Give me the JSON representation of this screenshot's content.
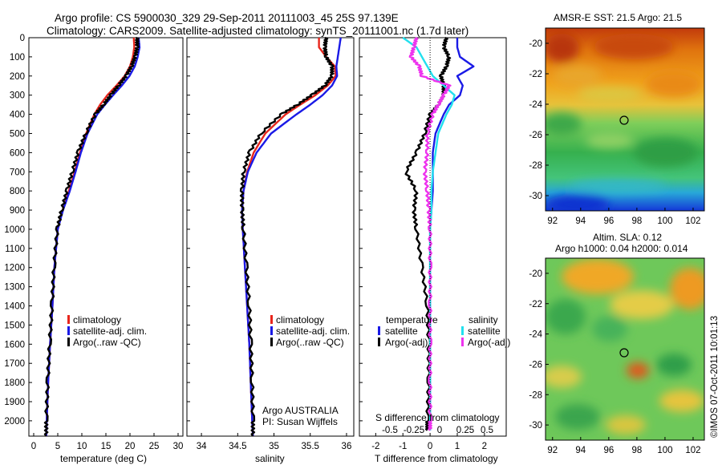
{
  "title": {
    "line1": "Argo profile: CS 5900030_329 29-Sep-2011 20111003_45 25S 97.139E",
    "line2": "Climatology: CARS2009. Satellite-adjusted climatology: synTS_20111001.nc (1.7d later)"
  },
  "colors": {
    "climatology": "#e8261c",
    "satellite": "#1a1ae6",
    "argo": "#000000",
    "salinity_satellite": "#22e0ee",
    "salinity_argo": "#ee33ee"
  },
  "chart_data": [
    {
      "type": "line",
      "panel": "temperature",
      "xlabel": "temperature (deg C)",
      "ylabel": "",
      "xlim": [
        -1,
        31
      ],
      "ylim": [
        2080,
        0
      ],
      "xticks": [
        "0",
        "5",
        "10",
        "15",
        "20",
        "25",
        "30"
      ],
      "yticks": [
        "0",
        "100",
        "200",
        "300",
        "400",
        "500",
        "600",
        "700",
        "800",
        "900",
        "1000",
        "1100",
        "1200",
        "1300",
        "1400",
        "1500",
        "1600",
        "1700",
        "1800",
        "1900",
        "2000"
      ],
      "legend": [
        "climatology",
        "satellite-adj. clim.",
        "Argo(..raw -QC)"
      ],
      "legend_position": "lower-right",
      "depth": [
        0,
        50,
        100,
        150,
        200,
        250,
        300,
        350,
        400,
        500,
        600,
        700,
        800,
        900,
        1000,
        1200,
        1400,
        1600,
        1800,
        2000,
        2080
      ],
      "series": [
        {
          "name": "climatology",
          "values": [
            20.8,
            20.9,
            20.6,
            20.0,
            18.9,
            17.2,
            15.3,
            13.8,
            12.6,
            10.9,
            9.6,
            8.5,
            7.3,
            6.0,
            5.0,
            4.3,
            3.9,
            3.4,
            3.0,
            2.7,
            2.6
          ]
        },
        {
          "name": "satellite-adj. clim.",
          "values": [
            21.8,
            22.0,
            21.6,
            21.0,
            19.9,
            18.3,
            16.5,
            14.8,
            13.2,
            11.2,
            9.8,
            8.7,
            7.5,
            6.1,
            5.0,
            4.3,
            3.9,
            3.4,
            3.0,
            2.7,
            2.6
          ]
        },
        {
          "name": "Argo(..raw -QC)",
          "values": [
            21.5,
            21.5,
            21.1,
            20.3,
            19.2,
            17.6,
            16.0,
            14.5,
            12.8,
            10.8,
            9.2,
            8.0,
            6.9,
            5.8,
            4.9,
            4.2,
            3.8,
            3.3,
            2.9,
            2.6,
            2.6
          ]
        }
      ]
    },
    {
      "type": "line",
      "panel": "salinity",
      "xlabel": "salinity",
      "ylabel": "",
      "xlim": [
        33.8,
        36.1
      ],
      "ylim": [
        2080,
        0
      ],
      "xticks": [
        "34",
        "34.5",
        "35",
        "35.5",
        "36"
      ],
      "legend": [
        "climatology",
        "satellite-adj. clim.",
        "Argo(..raw -QC)"
      ],
      "legend_position": "lower-right",
      "annotation": [
        "Argo AUSTRALIA",
        "PI: Susan Wijffels"
      ],
      "depth": [
        0,
        50,
        100,
        150,
        200,
        250,
        300,
        350,
        400,
        500,
        600,
        700,
        800,
        900,
        1000,
        1200,
        1400,
        1600,
        1800,
        2000,
        2080
      ],
      "series": [
        {
          "name": "climatology",
          "values": [
            35.62,
            35.62,
            35.72,
            35.84,
            35.85,
            35.74,
            35.57,
            35.36,
            35.16,
            34.88,
            34.72,
            34.63,
            34.58,
            34.56,
            34.57,
            34.6,
            34.63,
            34.66,
            34.68,
            34.7,
            34.71
          ]
        },
        {
          "name": "satellite-adj. clim.",
          "values": [
            35.92,
            35.9,
            35.88,
            35.86,
            35.87,
            35.8,
            35.67,
            35.5,
            35.31,
            34.96,
            34.76,
            34.64,
            34.58,
            34.56,
            34.57,
            34.6,
            34.63,
            34.66,
            34.68,
            34.7,
            34.71
          ]
        },
        {
          "name": "Argo(..raw -QC)",
          "values": [
            35.72,
            35.7,
            35.72,
            35.8,
            35.8,
            35.7,
            35.52,
            35.32,
            35.1,
            34.82,
            34.66,
            34.58,
            34.56,
            34.56,
            34.58,
            34.62,
            34.66,
            34.68,
            34.7,
            34.71,
            34.71
          ]
        }
      ]
    },
    {
      "type": "line",
      "panel": "difference",
      "xlabel": "T difference from climatology",
      "xlabel2": "S difference from climatology",
      "ylabel": "",
      "xlim": [
        -2.6,
        2.8
      ],
      "ylim": [
        2080,
        0
      ],
      "xticks": [
        "-2",
        "-1",
        "0",
        "1",
        "2"
      ],
      "xticks2": [
        "-0.5",
        "-0.25",
        "0",
        "0.25",
        "0.5"
      ],
      "legend_temperature_heading": "temperature",
      "legend_salinity_heading": "salinity",
      "legend": [
        "satellite",
        "Argo(-adj)",
        "satellite",
        "Argo(-adj)"
      ],
      "legend_position": "middle",
      "depth": [
        0,
        50,
        100,
        150,
        200,
        250,
        300,
        350,
        400,
        500,
        600,
        700,
        800,
        900,
        1000,
        1200,
        1400,
        1600,
        1800,
        2000,
        2050
      ],
      "series": [
        {
          "name": "temperature satellite",
          "values": [
            1.0,
            1.0,
            1.1,
            1.6,
            1.0,
            1.2,
            1.1,
            0.7,
            0.5,
            0.2,
            0.1,
            0.1,
            0.1,
            0.05,
            0.0,
            0.0,
            0.0,
            0.0,
            0.0,
            0.0,
            0.0
          ]
        },
        {
          "name": "temperature Argo(-adj)",
          "values": [
            0.6,
            0.5,
            0.7,
            0.6,
            0.4,
            0.5,
            0.5,
            0.3,
            0.0,
            -0.2,
            -0.5,
            -0.9,
            -0.5,
            -0.6,
            -0.5,
            -0.3,
            -0.1,
            -0.05,
            -0.05,
            -0.1,
            -0.1
          ]
        },
        {
          "name": "salinity satellite",
          "values": [
            -1.0,
            -0.5,
            -0.3,
            -0.1,
            0.1,
            0.5,
            0.9,
            0.8,
            0.6,
            0.3,
            0.2,
            0.1,
            0.05,
            0.05,
            0.0,
            0.0,
            0.0,
            0.0,
            0.0,
            0.0,
            0.0
          ]
        },
        {
          "name": "salinity Argo(-adj)",
          "values": [
            -0.5,
            -0.6,
            -0.7,
            -0.4,
            -0.3,
            0.7,
            0.5,
            0.3,
            0.1,
            -0.1,
            -0.1,
            -0.2,
            -0.1,
            -0.05,
            0.0,
            0.0,
            0.0,
            0.0,
            0.0,
            0.0,
            0.0
          ]
        }
      ]
    },
    {
      "type": "heatmap",
      "panel": "AMSR-E SST",
      "title": "AMSR-E SST: 21.5  Argo: 21.5",
      "xlim": [
        91.5,
        102.8
      ],
      "ylim": [
        -31,
        -19
      ],
      "xticks": [
        "92",
        "94",
        "96",
        "98",
        "100",
        "102"
      ],
      "yticks": [
        "-20",
        "-22",
        "-24",
        "-26",
        "-28",
        "-30"
      ],
      "argo_position": [
        97.14,
        -25.0
      ],
      "field": "sea surface temperature: warm (orange/red) in north, cooling southwards to green, cold blue band near 30S"
    },
    {
      "type": "heatmap",
      "panel": "Altimeter SLA",
      "title": "Altim. SLA: 0.12",
      "title2": "Argo h1000: 0.04  h2000: 0.014",
      "xlim": [
        91.5,
        102.8
      ],
      "ylim": [
        -31,
        -19
      ],
      "xticks": [
        "92",
        "94",
        "96",
        "98",
        "100",
        "102"
      ],
      "yticks": [
        "-20",
        "-22",
        "-24",
        "-26",
        "-28",
        "-30"
      ],
      "argo_position": [
        97.14,
        -25.0
      ],
      "field": "sea level anomaly: patchy green/yellow with orange eddies"
    }
  ],
  "footer": "©IMOS 07-Oct-2011 10:01:13"
}
